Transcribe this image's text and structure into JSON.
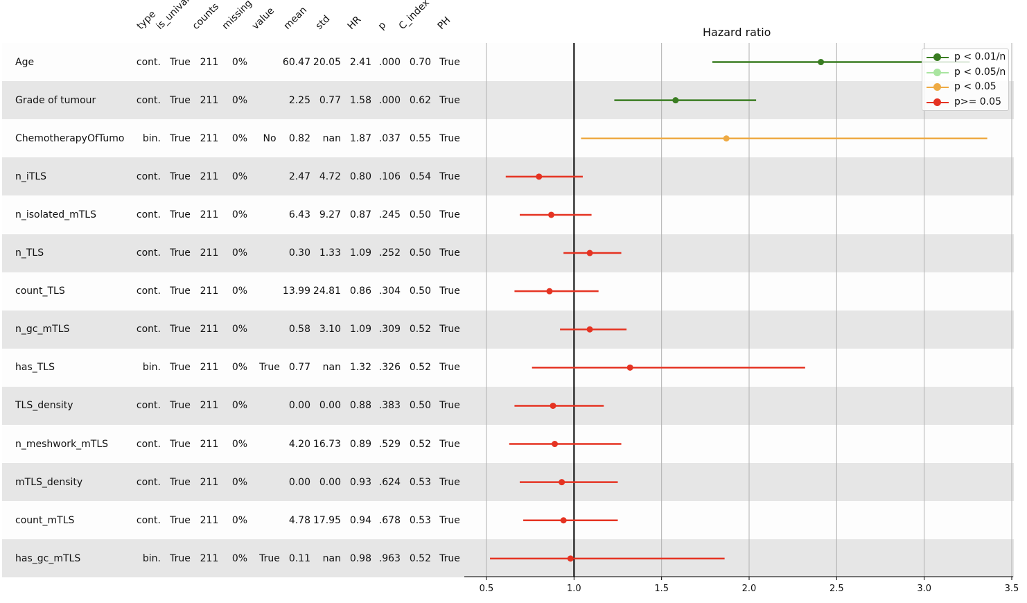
{
  "chart_data": {
    "type": "forest",
    "title": "Hazard ratio",
    "columns": [
      "type",
      "is_univariate",
      "counts",
      "missing",
      "value",
      "mean",
      "std",
      "HR",
      "p",
      "C_index",
      "PH"
    ],
    "x_ticks": [
      "0.5",
      "1.0",
      "1.5",
      "2.0",
      "2.5",
      "3.0",
      "3.5"
    ],
    "xlim": [
      0.5,
      3.5
    ],
    "reference_line": 1.0,
    "grid": true,
    "legend_position": "top-right",
    "legend": [
      {
        "label": "p < 0.01/n",
        "color": "#3a7d22"
      },
      {
        "label": "p < 0.05/n",
        "color": "#a9e5a0"
      },
      {
        "label": "p < 0.05",
        "color": "#eeaa44"
      },
      {
        "label": "p>= 0.05",
        "color": "#e53322"
      }
    ],
    "rows": [
      {
        "name": "Age",
        "type": "cont.",
        "univariate": "True",
        "counts": "211",
        "missing": "0%",
        "value": "",
        "mean": "60.47",
        "std": "20.05",
        "HR": "2.41",
        "p": ".000",
        "c_index": "0.70",
        "PH": "True",
        "hr": 2.41,
        "lo": 1.79,
        "hi": 3.26,
        "group": 0
      },
      {
        "name": "Grade of tumour",
        "type": "cont.",
        "univariate": "True",
        "counts": "211",
        "missing": "0%",
        "value": "",
        "mean": "2.25",
        "std": "0.77",
        "HR": "1.58",
        "p": ".000",
        "c_index": "0.62",
        "PH": "True",
        "hr": 1.58,
        "lo": 1.23,
        "hi": 2.04,
        "group": 0
      },
      {
        "name": "ChemotherapyOfTumo",
        "type": "bin.",
        "univariate": "True",
        "counts": "211",
        "missing": "0%",
        "value": "No",
        "mean": "0.82",
        "std": "nan",
        "HR": "1.87",
        "p": ".037",
        "c_index": "0.55",
        "PH": "True",
        "hr": 1.87,
        "lo": 1.04,
        "hi": 3.36,
        "group": 2
      },
      {
        "name": "n_iTLS",
        "type": "cont.",
        "univariate": "True",
        "counts": "211",
        "missing": "0%",
        "value": "",
        "mean": "2.47",
        "std": "4.72",
        "HR": "0.80",
        "p": ".106",
        "c_index": "0.54",
        "PH": "True",
        "hr": 0.8,
        "lo": 0.61,
        "hi": 1.05,
        "group": 3
      },
      {
        "name": "n_isolated_mTLS",
        "type": "cont.",
        "univariate": "True",
        "counts": "211",
        "missing": "0%",
        "value": "",
        "mean": "6.43",
        "std": "9.27",
        "HR": "0.87",
        "p": ".245",
        "c_index": "0.50",
        "PH": "True",
        "hr": 0.87,
        "lo": 0.69,
        "hi": 1.1,
        "group": 3
      },
      {
        "name": "n_TLS",
        "type": "cont.",
        "univariate": "True",
        "counts": "211",
        "missing": "0%",
        "value": "",
        "mean": "0.30",
        "std": "1.33",
        "HR": "1.09",
        "p": ".252",
        "c_index": "0.50",
        "PH": "True",
        "hr": 1.09,
        "lo": 0.94,
        "hi": 1.27,
        "group": 3
      },
      {
        "name": "count_TLS",
        "type": "cont.",
        "univariate": "True",
        "counts": "211",
        "missing": "0%",
        "value": "",
        "mean": "13.99",
        "std": "24.81",
        "HR": "0.86",
        "p": ".304",
        "c_index": "0.50",
        "PH": "True",
        "hr": 0.86,
        "lo": 0.66,
        "hi": 1.14,
        "group": 3
      },
      {
        "name": "n_gc_mTLS",
        "type": "cont.",
        "univariate": "True",
        "counts": "211",
        "missing": "0%",
        "value": "",
        "mean": "0.58",
        "std": "3.10",
        "HR": "1.09",
        "p": ".309",
        "c_index": "0.52",
        "PH": "True",
        "hr": 1.09,
        "lo": 0.92,
        "hi": 1.3,
        "group": 3
      },
      {
        "name": "has_TLS",
        "type": "bin.",
        "univariate": "True",
        "counts": "211",
        "missing": "0%",
        "value": "True",
        "mean": "0.77",
        "std": "nan",
        "HR": "1.32",
        "p": ".326",
        "c_index": "0.52",
        "PH": "True",
        "hr": 1.32,
        "lo": 0.76,
        "hi": 2.32,
        "group": 3
      },
      {
        "name": "TLS_density",
        "type": "cont.",
        "univariate": "True",
        "counts": "211",
        "missing": "0%",
        "value": "",
        "mean": "0.00",
        "std": "0.00",
        "HR": "0.88",
        "p": ".383",
        "c_index": "0.50",
        "PH": "True",
        "hr": 0.88,
        "lo": 0.66,
        "hi": 1.17,
        "group": 3
      },
      {
        "name": "n_meshwork_mTLS",
        "type": "cont.",
        "univariate": "True",
        "counts": "211",
        "missing": "0%",
        "value": "",
        "mean": "4.20",
        "std": "16.73",
        "HR": "0.89",
        "p": ".529",
        "c_index": "0.52",
        "PH": "True",
        "hr": 0.89,
        "lo": 0.63,
        "hi": 1.27,
        "group": 3
      },
      {
        "name": "mTLS_density",
        "type": "cont.",
        "univariate": "True",
        "counts": "211",
        "missing": "0%",
        "value": "",
        "mean": "0.00",
        "std": "0.00",
        "HR": "0.93",
        "p": ".624",
        "c_index": "0.53",
        "PH": "True",
        "hr": 0.93,
        "lo": 0.69,
        "hi": 1.25,
        "group": 3
      },
      {
        "name": "count_mTLS",
        "type": "cont.",
        "univariate": "True",
        "counts": "211",
        "missing": "0%",
        "value": "",
        "mean": "4.78",
        "std": "17.95",
        "HR": "0.94",
        "p": ".678",
        "c_index": "0.53",
        "PH": "True",
        "hr": 0.94,
        "lo": 0.71,
        "hi": 1.25,
        "group": 3
      },
      {
        "name": "has_gc_mTLS",
        "type": "bin.",
        "univariate": "True",
        "counts": "211",
        "missing": "0%",
        "value": "True",
        "mean": "0.11",
        "std": "nan",
        "HR": "0.98",
        "p": ".963",
        "c_index": "0.52",
        "PH": "True",
        "hr": 0.98,
        "lo": 0.52,
        "hi": 1.86,
        "group": 3
      }
    ]
  }
}
